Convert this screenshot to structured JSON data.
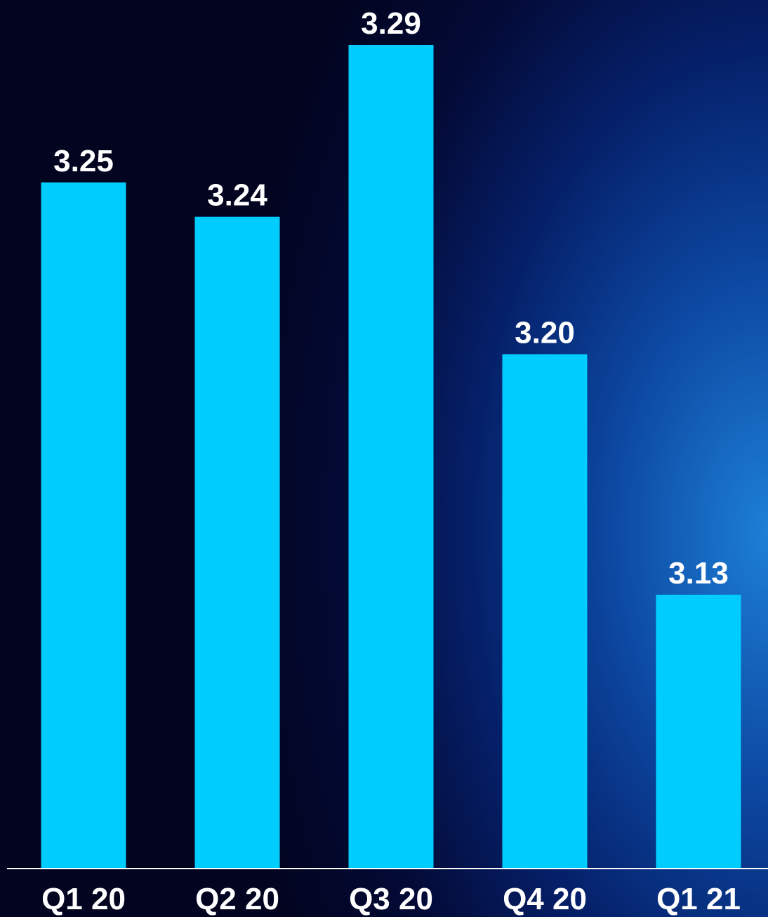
{
  "chart_data": {
    "type": "bar",
    "categories": [
      "Q1 20",
      "Q2 20",
      "Q3 20",
      "Q4 20",
      "Q1 21"
    ],
    "values": [
      3.25,
      3.24,
      3.29,
      3.2,
      3.13
    ],
    "data_labels": [
      "3.25",
      "3.24",
      "3.29",
      "3.20",
      "3.13"
    ],
    "title": "",
    "xlabel": "",
    "ylabel": "",
    "grid": false,
    "legend": "none",
    "colors": {
      "bar": "#00cdfe",
      "text": "#ffffff",
      "background_dark": "#020420",
      "background_accent": "#1d7fd6"
    }
  }
}
